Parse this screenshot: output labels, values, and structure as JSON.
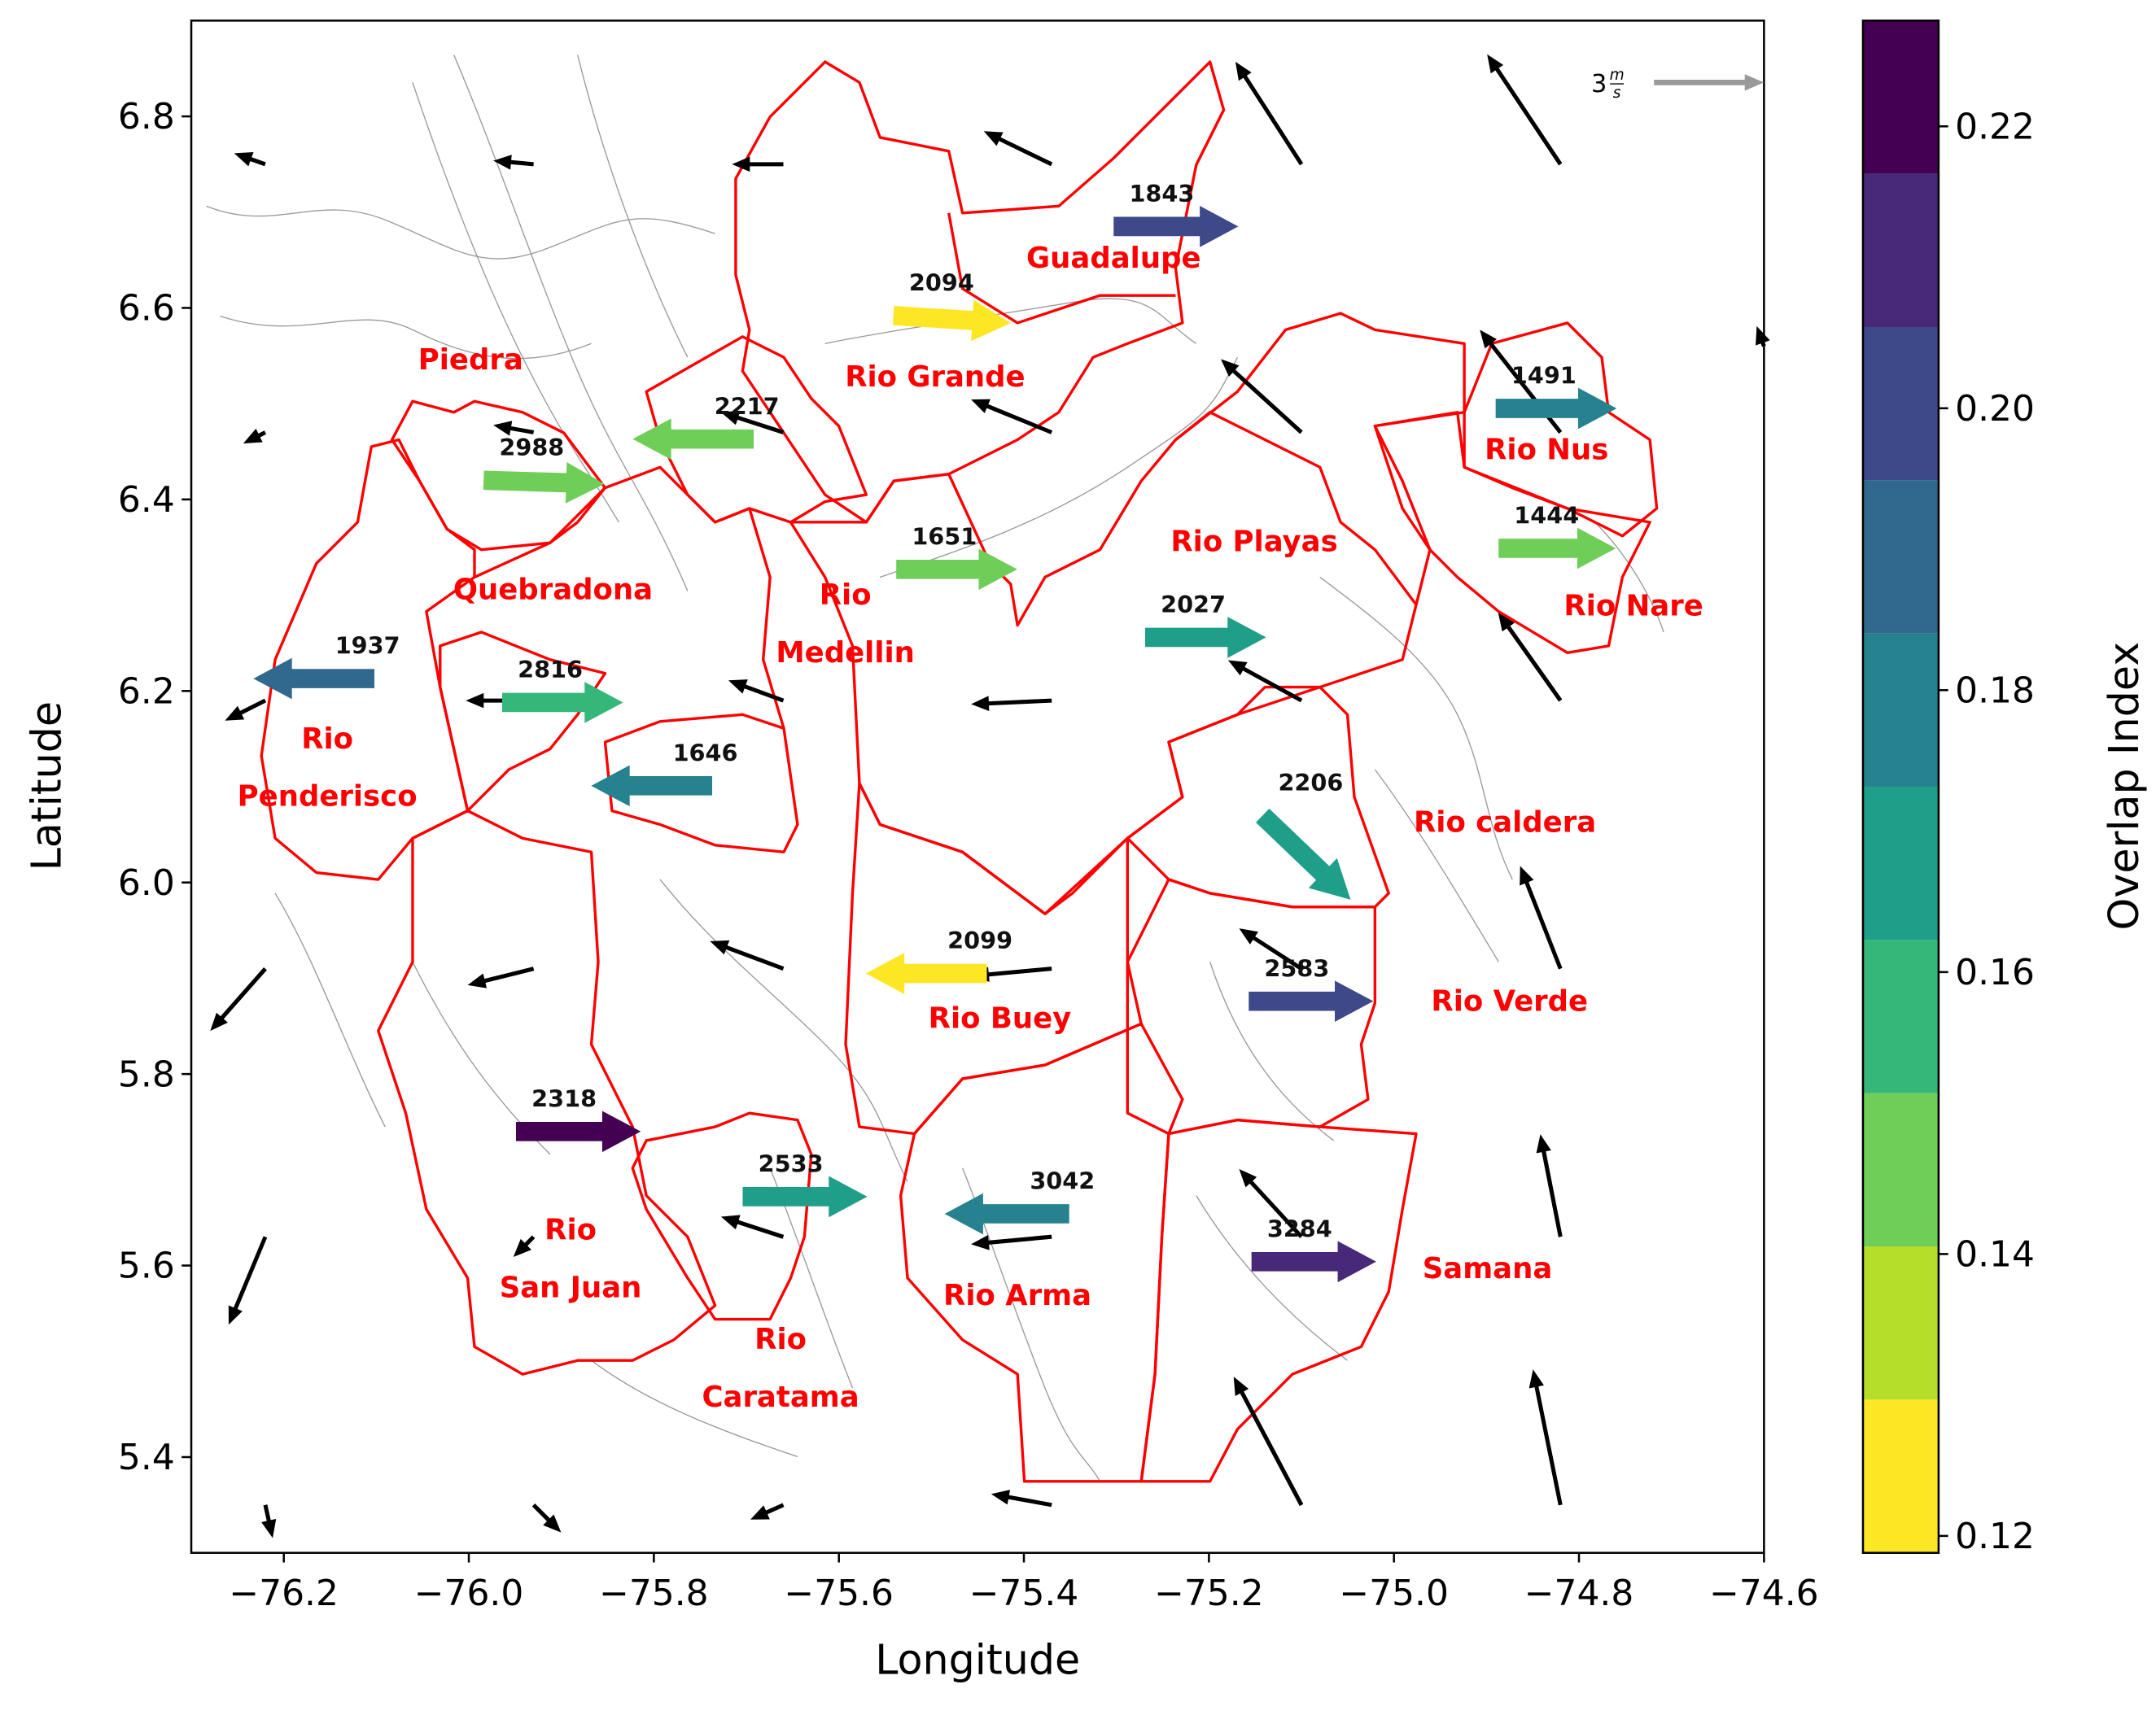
{
  "chart_data": {
    "type": "quiver",
    "xlabel": "Longitude",
    "ylabel": "Latitude",
    "xlim": [
      -76.3,
      -74.6
    ],
    "ylim": [
      5.3,
      6.9
    ],
    "xticks": [
      {
        "value": -76.2,
        "label": "−76.2"
      },
      {
        "value": -76.0,
        "label": "−76.0"
      },
      {
        "value": -75.8,
        "label": "−75.8"
      },
      {
        "value": -75.6,
        "label": "−75.6"
      },
      {
        "value": -75.4,
        "label": "−75.4"
      },
      {
        "value": -75.2,
        "label": "−75.2"
      },
      {
        "value": -75.0,
        "label": "−75.0"
      },
      {
        "value": -74.8,
        "label": "−74.8"
      },
      {
        "value": -74.6,
        "label": "−74.6"
      }
    ],
    "yticks": [
      5.4,
      5.6,
      5.8,
      {
        "value": 6,
        "label": "6.0"
      },
      6.2,
      6.4,
      6.6,
      6.8
    ],
    "colorbar": {
      "label": "Overlap Index",
      "lim": [
        0.1188,
        0.2275
      ],
      "ticks": [
        0.12,
        0.14,
        0.16,
        0.18,
        {
          "value": 0.2,
          "label": "0.20"
        },
        0.22
      ],
      "colors": [
        "#fde725",
        "#b5de2b",
        "#6ece58",
        "#35b779",
        "#1f9e89",
        "#26828e",
        "#31688e",
        "#3e4989",
        "#482878",
        "#440154"
      ]
    },
    "reference": {
      "u": 3,
      "numerator": "m",
      "denominator": "s",
      "color": "#999999"
    },
    "wind_color": "#000000",
    "basin_arrows": [
      {
        "label": "1843",
        "x": -75.303,
        "y": 6.685,
        "u": 3.4,
        "v": 0,
        "overlap": 0.2
      },
      {
        "label": "2094",
        "x": -75.541,
        "y": 6.592,
        "u": 3.2,
        "v": -0.2,
        "overlap": 0.12
      },
      {
        "label": "2217",
        "x": -75.692,
        "y": 6.463,
        "u": -3.3,
        "v": 0,
        "overlap": 0.15
      },
      {
        "label": "2988",
        "x": -75.984,
        "y": 6.42,
        "u": 3.3,
        "v": -0.1,
        "overlap": 0.15
      },
      {
        "label": "1491",
        "x": -74.89,
        "y": 6.495,
        "u": 3.3,
        "v": 0,
        "overlap": 0.18
      },
      {
        "label": "1444",
        "x": -74.887,
        "y": 6.349,
        "u": 3.2,
        "v": 0,
        "overlap": 0.15
      },
      {
        "label": "1651",
        "x": -75.538,
        "y": 6.327,
        "u": 3.3,
        "v": 0,
        "overlap": 0.15
      },
      {
        "label": "2027",
        "x": -75.269,
        "y": 6.256,
        "u": 3.3,
        "v": 0,
        "overlap": 0.17
      },
      {
        "label": "1937",
        "x": -76.102,
        "y": 6.213,
        "u": -3.3,
        "v": 0,
        "overlap": 0.19
      },
      {
        "label": "2816",
        "x": -75.964,
        "y": 6.188,
        "u": 3.3,
        "v": 0,
        "overlap": 0.16
      },
      {
        "label": "1646",
        "x": -75.737,
        "y": 6.101,
        "u": -3.3,
        "v": 0,
        "overlap": 0.18
      },
      {
        "label": "2206",
        "x": -75.142,
        "y": 6.07,
        "u": 2.4,
        "v": -2.3,
        "overlap": 0.17
      },
      {
        "label": "2099",
        "x": -75.44,
        "y": 5.905,
        "u": -3.3,
        "v": 0,
        "overlap": 0.12
      },
      {
        "label": "2583",
        "x": -75.157,
        "y": 5.876,
        "u": 3.4,
        "v": 0,
        "overlap": 0.2
      },
      {
        "label": "2318",
        "x": -75.949,
        "y": 5.74,
        "u": 3.4,
        "v": 0,
        "overlap": 0.22
      },
      {
        "label": "2533",
        "x": -75.704,
        "y": 5.672,
        "u": 3.4,
        "v": 0,
        "overlap": 0.17
      },
      {
        "label": "3042",
        "x": -75.351,
        "y": 5.654,
        "u": -3.4,
        "v": 0,
        "overlap": 0.18
      },
      {
        "label": "3284",
        "x": -75.154,
        "y": 5.604,
        "u": 3.4,
        "v": 0,
        "overlap": 0.21
      }
    ],
    "wind": [
      {
        "x": -76.22,
        "y": 6.75,
        "u": -0.85,
        "v": 0.3
      },
      {
        "x": -75.93,
        "y": 6.75,
        "u": -1.1,
        "v": 0.1
      },
      {
        "x": -75.66,
        "y": 6.75,
        "u": -1.4,
        "v": 0
      },
      {
        "x": -75.37,
        "y": 6.75,
        "u": -1.85,
        "v": 0.9
      },
      {
        "x": -75.1,
        "y": 6.75,
        "u": -1.8,
        "v": 2.8
      },
      {
        "x": -74.82,
        "y": 6.75,
        "u": -2.0,
        "v": 3.0
      },
      {
        "x": -74.6,
        "y": 6.56,
        "u": -0.2,
        "v": 0.55
      },
      {
        "x": -76.22,
        "y": 6.47,
        "u": -0.6,
        "v": -0.3
      },
      {
        "x": -75.93,
        "y": 6.47,
        "u": -1.1,
        "v": 0.2
      },
      {
        "x": -75.66,
        "y": 6.47,
        "u": -1.7,
        "v": 0.55
      },
      {
        "x": -75.37,
        "y": 6.47,
        "u": -2.2,
        "v": 0.9
      },
      {
        "x": -75.1,
        "y": 6.47,
        "u": -2.2,
        "v": 2.0
      },
      {
        "x": -74.82,
        "y": 6.47,
        "u": -2.2,
        "v": 2.8
      },
      {
        "x": -76.22,
        "y": 6.19,
        "u": -1.1,
        "v": -0.55
      },
      {
        "x": -75.93,
        "y": 6.19,
        "u": -1.85,
        "v": 0
      },
      {
        "x": -75.66,
        "y": 6.19,
        "u": -1.5,
        "v": 0.55
      },
      {
        "x": -75.37,
        "y": 6.19,
        "u": -2.2,
        "v": -0.1
      },
      {
        "x": -75.1,
        "y": 6.19,
        "u": -2.0,
        "v": 1.1
      },
      {
        "x": -74.82,
        "y": 6.19,
        "u": -1.7,
        "v": 2.4
      },
      {
        "x": -76.22,
        "y": 5.91,
        "u": -1.5,
        "v": -1.7
      },
      {
        "x": -75.93,
        "y": 5.91,
        "u": -1.8,
        "v": -0.45
      },
      {
        "x": -75.66,
        "y": 5.91,
        "u": -2.0,
        "v": 0.75
      },
      {
        "x": -75.37,
        "y": 5.91,
        "u": -2.2,
        "v": -0.2
      },
      {
        "x": -75.1,
        "y": 5.91,
        "u": -1.7,
        "v": 1.1
      },
      {
        "x": -74.82,
        "y": 5.91,
        "u": -1.1,
        "v": 2.8
      },
      {
        "x": -76.22,
        "y": 5.63,
        "u": -1.0,
        "v": -2.4
      },
      {
        "x": -75.93,
        "y": 5.63,
        "u": -0.55,
        "v": -0.55
      },
      {
        "x": -75.66,
        "y": 5.63,
        "u": -1.7,
        "v": 0.55
      },
      {
        "x": -75.37,
        "y": 5.63,
        "u": -2.2,
        "v": -0.2
      },
      {
        "x": -75.1,
        "y": 5.63,
        "u": -1.7,
        "v": 1.85
      },
      {
        "x": -74.82,
        "y": 5.63,
        "u": -0.55,
        "v": 2.8
      },
      {
        "x": -76.22,
        "y": 5.35,
        "u": 0.2,
        "v": -0.9
      },
      {
        "x": -75.93,
        "y": 5.35,
        "u": 0.75,
        "v": -0.75
      },
      {
        "x": -75.66,
        "y": 5.35,
        "u": -0.9,
        "v": -0.4
      },
      {
        "x": -75.37,
        "y": 5.35,
        "u": -1.65,
        "v": 0.3
      },
      {
        "x": -75.1,
        "y": 5.35,
        "u": -1.85,
        "v": 3.5
      },
      {
        "x": -74.82,
        "y": 5.35,
        "u": -0.75,
        "v": 3.7
      }
    ],
    "basins": [
      {
        "lines": [
          "Guadalupe"
        ],
        "x": -75.303,
        "y": 6.652
      },
      {
        "lines": [
          "Rio Grande"
        ],
        "x": -75.496,
        "y": 6.528
      },
      {
        "lines": [
          "Piedra"
        ],
        "x": -75.998,
        "y": 6.546
      },
      {
        "lines": [
          "Rio Nus"
        ],
        "x": -74.835,
        "y": 6.452
      },
      {
        "lines": [
          "Rio Playas"
        ],
        "x": -75.151,
        "y": 6.356
      },
      {
        "lines": [
          "Quebradona"
        ],
        "x": -75.909,
        "y": 6.306
      },
      {
        "lines": [
          "Rio",
          "Medellin"
        ],
        "x": -75.593,
        "y": 6.27
      },
      {
        "lines": [
          "Rio Nare"
        ],
        "x": -74.741,
        "y": 6.289
      },
      {
        "lines": [
          "Rio",
          "Penderisco"
        ],
        "x": -76.153,
        "y": 6.12
      },
      {
        "lines": [
          "Rio caldera"
        ],
        "x": -74.88,
        "y": 6.063
      },
      {
        "lines": [
          "Rio Verde"
        ],
        "x": -74.875,
        "y": 5.876
      },
      {
        "lines": [
          "Rio Buey"
        ],
        "x": -75.426,
        "y": 5.858
      },
      {
        "lines": [
          "Rio",
          "San Juan"
        ],
        "x": -75.89,
        "y": 5.607
      },
      {
        "lines": [
          "Samana"
        ],
        "x": -74.899,
        "y": 5.597
      },
      {
        "lines": [
          "Rio Arma"
        ],
        "x": -75.407,
        "y": 5.569
      },
      {
        "lines": [
          "Rio",
          "Caratama"
        ],
        "x": -75.663,
        "y": 5.493
      }
    ]
  }
}
